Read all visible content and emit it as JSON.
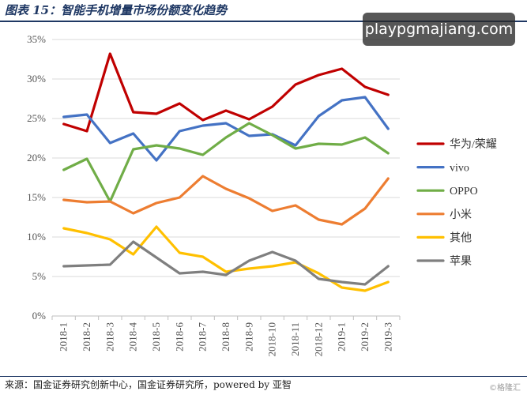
{
  "page": {
    "title": "图表 15：智能手机增量市场份额变化趋势",
    "watermark": "playpgmajiang.com",
    "source_note": "来源：国金证券研究创新中心，国金证券研究所，powered by 亚智",
    "corner_mark": "©格隆汇"
  },
  "chart_data": {
    "type": "line",
    "categories": [
      "2018-1",
      "2018-2",
      "2018-3",
      "2018-4",
      "2018-5",
      "2018-6",
      "2018-7",
      "2018-8",
      "2018-9",
      "2018-10",
      "2018-11",
      "2018-12",
      "2019-1",
      "2019-2",
      "2019-3"
    ],
    "ylim": [
      0,
      35
    ],
    "yticks": [
      0,
      5,
      10,
      15,
      20,
      25,
      30,
      35
    ],
    "ytick_labels": [
      "0%",
      "5%",
      "10%",
      "15%",
      "20%",
      "25%",
      "30%",
      "35%"
    ],
    "grid": true,
    "legend_position": "right",
    "series": [
      {
        "name": "华为/荣耀",
        "color": "#c00000",
        "values": [
          24.3,
          23.4,
          33.2,
          25.8,
          25.6,
          26.9,
          24.8,
          26.0,
          24.9,
          26.5,
          29.3,
          30.5,
          31.3,
          29.0,
          28.0
        ]
      },
      {
        "name": "vivo",
        "color": "#4472c4",
        "values": [
          25.2,
          25.5,
          21.9,
          23.1,
          19.7,
          23.4,
          24.1,
          24.4,
          22.8,
          23.0,
          21.6,
          25.3,
          27.3,
          27.7,
          23.7
        ]
      },
      {
        "name": "OPPO",
        "color": "#70ad47",
        "values": [
          18.5,
          19.9,
          14.5,
          21.1,
          21.6,
          21.2,
          20.4,
          22.6,
          24.4,
          22.9,
          21.2,
          21.8,
          21.7,
          22.6,
          20.6
        ]
      },
      {
        "name": "小米",
        "color": "#ed7d31",
        "values": [
          14.7,
          14.4,
          14.5,
          13.0,
          14.3,
          15.0,
          17.7,
          16.1,
          14.9,
          13.3,
          14.0,
          12.2,
          11.6,
          13.6,
          17.4
        ]
      },
      {
        "name": "其他",
        "color": "#ffc000",
        "values": [
          11.1,
          10.5,
          9.7,
          7.8,
          11.3,
          8.0,
          7.5,
          5.6,
          6.0,
          6.3,
          6.8,
          5.4,
          3.6,
          3.2,
          4.3
        ]
      },
      {
        "name": "苹果",
        "color": "#7f7f7f",
        "values": [
          6.3,
          6.4,
          6.5,
          9.4,
          7.4,
          5.4,
          5.6,
          5.2,
          7.0,
          8.1,
          7.0,
          4.7,
          4.3,
          4.0,
          6.3
        ]
      }
    ]
  }
}
